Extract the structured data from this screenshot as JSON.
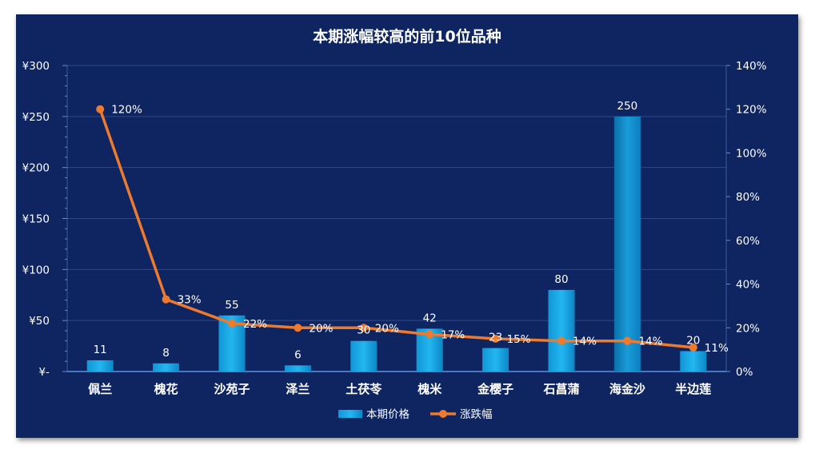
{
  "chart_data": {
    "type": "bar",
    "title": "本期涨幅较高的前10位品种",
    "categories": [
      "佩兰",
      "槐花",
      "沙苑子",
      "泽兰",
      "土茯苓",
      "槐米",
      "金樱子",
      "石菖蒲",
      "海金沙",
      "半边莲"
    ],
    "series": [
      {
        "name": "本期价格",
        "type": "bar",
        "axis": "left",
        "color": "#1aa7e6",
        "values": [
          11,
          8,
          55,
          6,
          30,
          42,
          23,
          80,
          250,
          20
        ],
        "labels": [
          "11",
          "8",
          "55",
          "6",
          "30",
          "42",
          "23",
          "80",
          "250",
          "20"
        ]
      },
      {
        "name": "涨跌幅",
        "type": "line",
        "axis": "right",
        "color": "#ee7a2e",
        "values": [
          120,
          33,
          22,
          20,
          20,
          17,
          15,
          14,
          14,
          11
        ],
        "labels": [
          "120%",
          "33%",
          "22%",
          "20%",
          "20%",
          "17%",
          "15%",
          "14%",
          "14%",
          "11%"
        ]
      }
    ],
    "y_left": {
      "min": 0,
      "max": 300,
      "ticks": [
        0,
        50,
        100,
        150,
        200,
        250,
        300
      ],
      "tick_labels": [
        "¥-",
        "¥50",
        "¥100",
        "¥150",
        "¥200",
        "¥250",
        "¥300"
      ]
    },
    "y_right": {
      "min": 0,
      "max": 140,
      "ticks": [
        0,
        20,
        40,
        60,
        80,
        100,
        120,
        140
      ],
      "tick_labels": [
        "0%",
        "20%",
        "40%",
        "60%",
        "80%",
        "100%",
        "120%",
        "140%"
      ]
    },
    "grid": true,
    "legend": "bottom",
    "colors": {
      "background": "#0f2561",
      "grid": "#2b4a8a",
      "text": "#ffffff"
    }
  }
}
